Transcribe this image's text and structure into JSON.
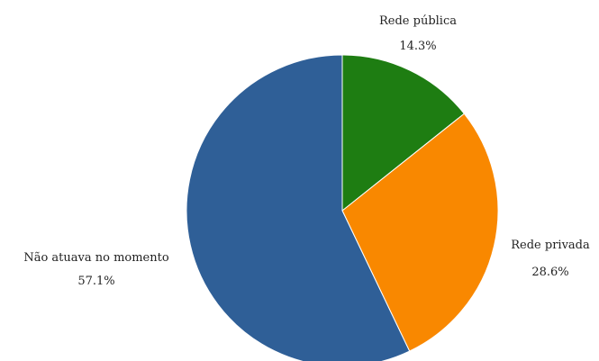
{
  "chart_data": {
    "type": "pie",
    "slices": [
      {
        "label": "Rede pública",
        "value": 14.3,
        "value_text": "14.3%",
        "color": "#1e7d12"
      },
      {
        "label": "Rede privada",
        "value": 28.6,
        "value_text": "28.6%",
        "color": "#f98800"
      },
      {
        "label": "Não atuava no momento",
        "value": 57.1,
        "value_text": "57.1%",
        "color": "#2f5f97"
      }
    ],
    "start_angle": "12 o'clock",
    "direction": "clockwise",
    "legend": "none",
    "title": ""
  }
}
